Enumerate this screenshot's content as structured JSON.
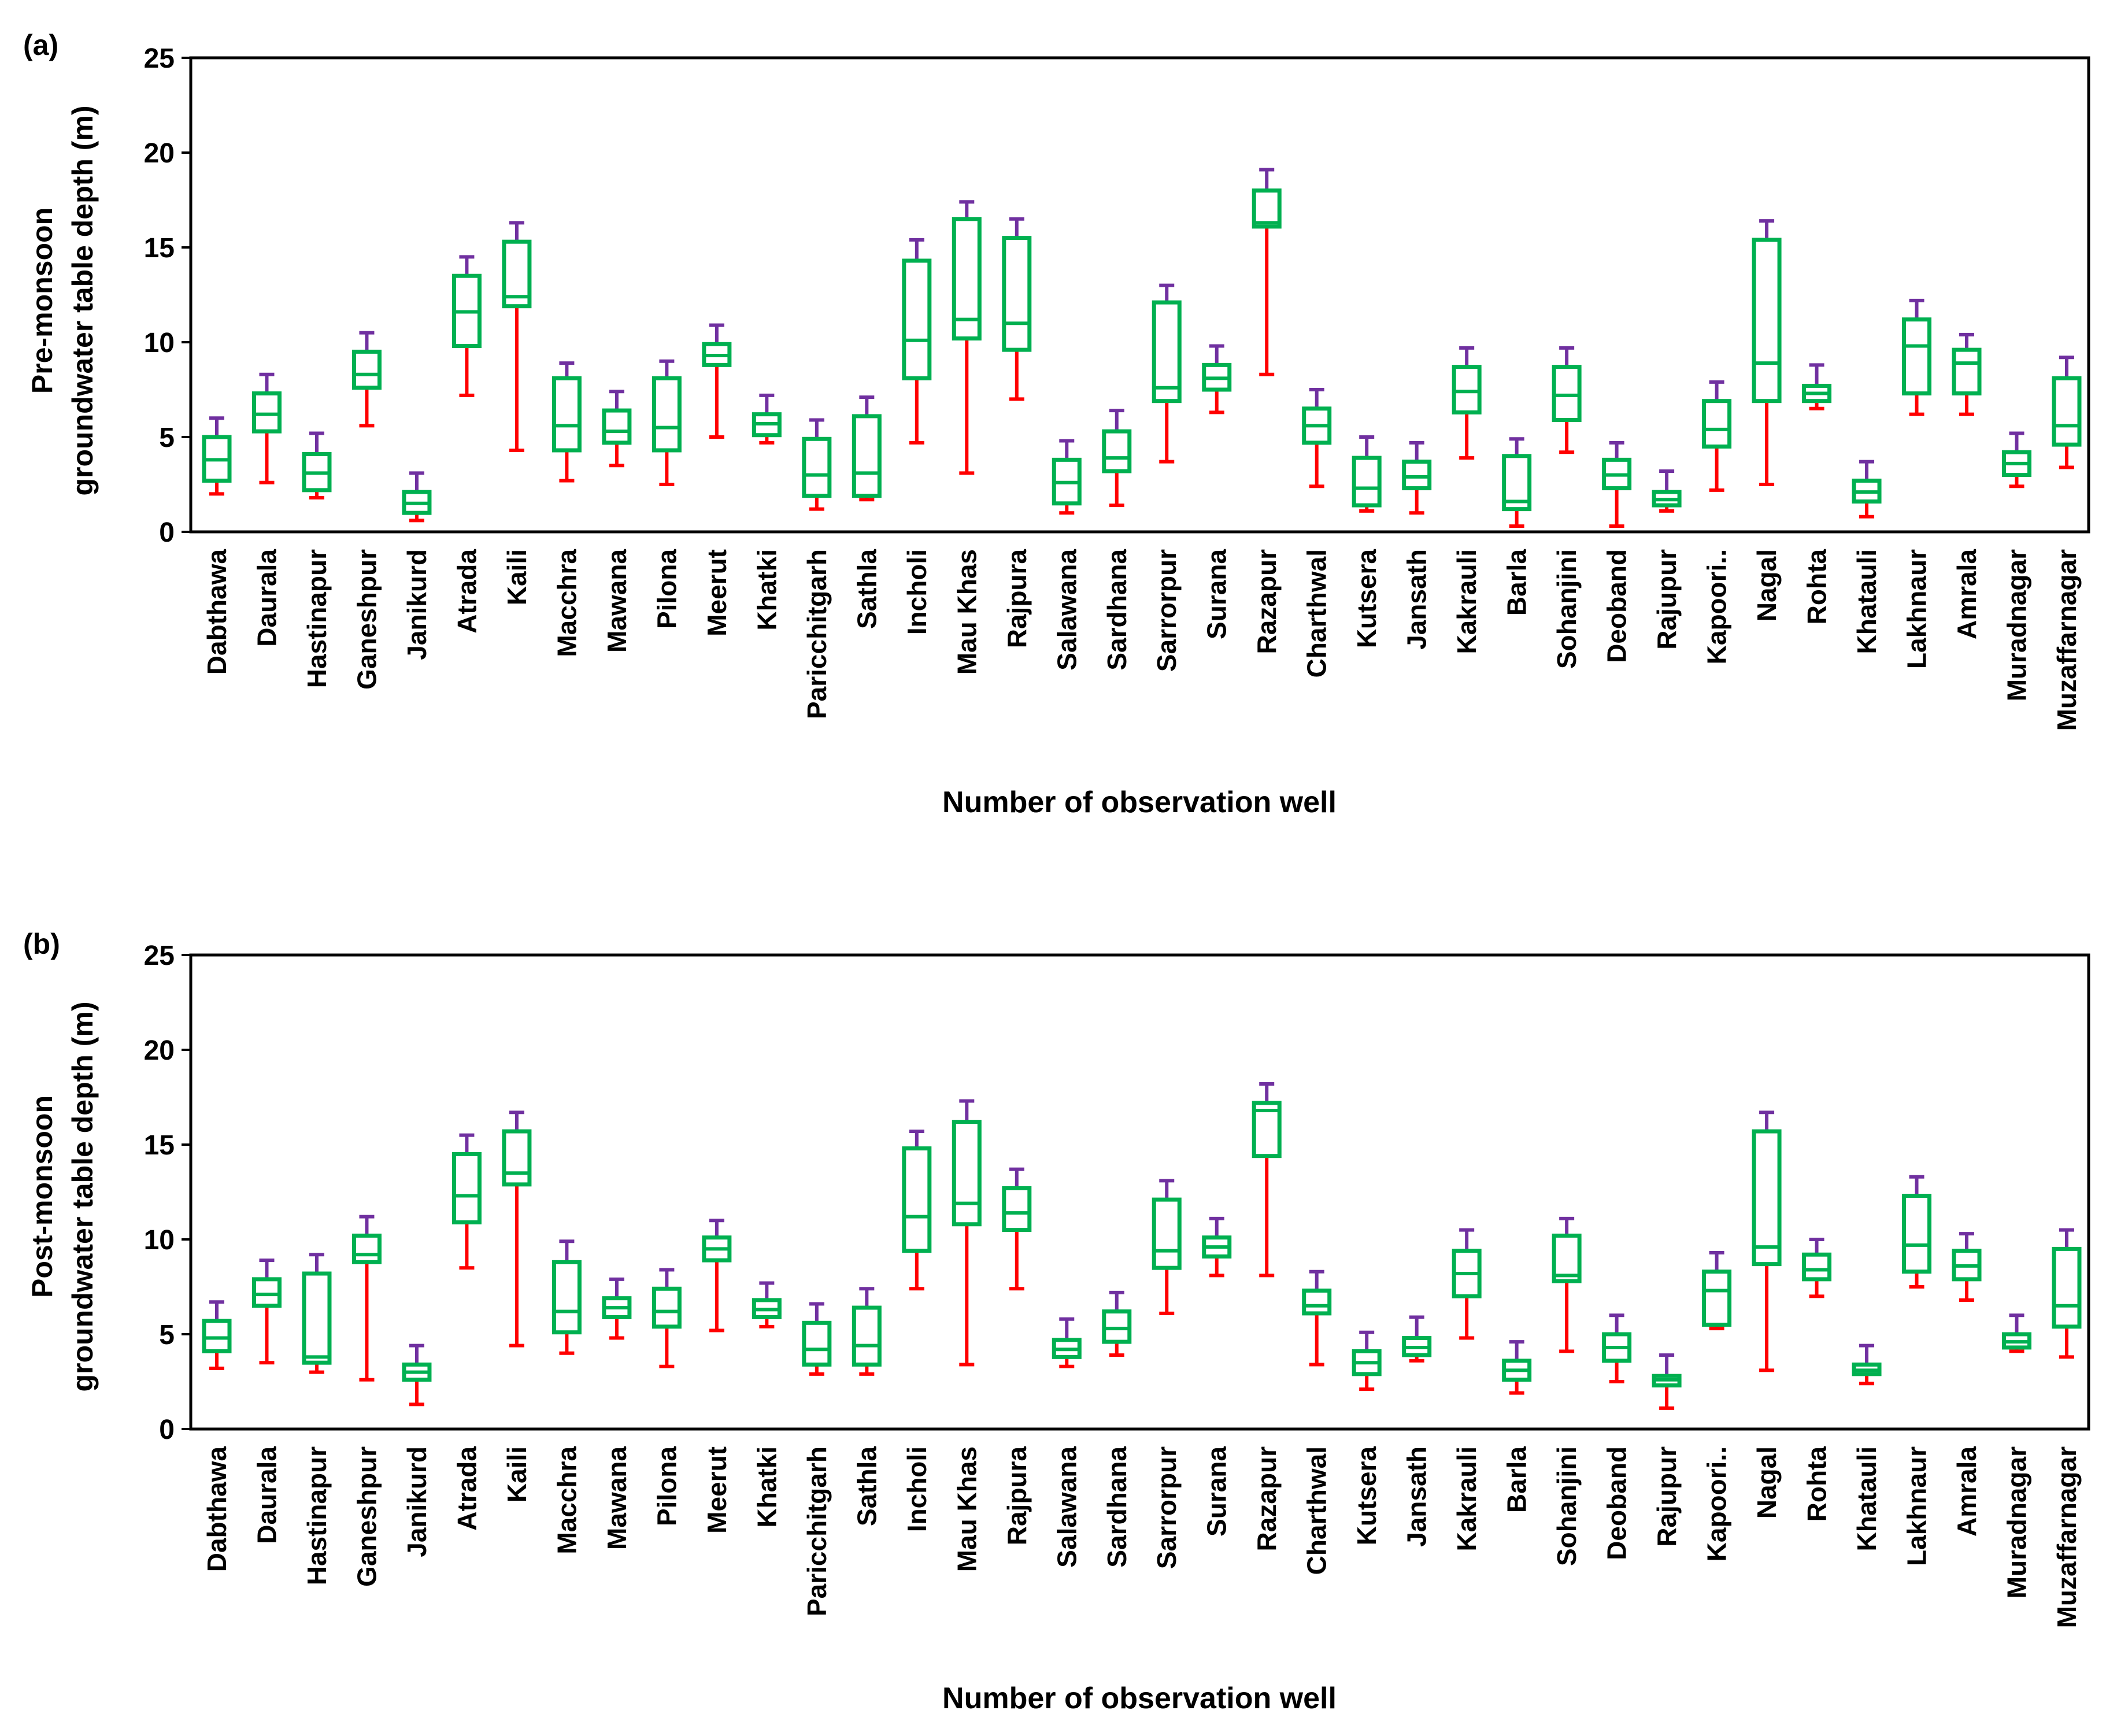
{
  "colors": {
    "box": "#00b050",
    "lower_whisker": "#ff0000",
    "upper_whisker": "#7030a0",
    "axis": "#000000"
  },
  "chart_data": [
    {
      "type": "boxplot",
      "panel_label": "(a)",
      "ylabel_line1": "Pre-monsoon",
      "ylabel_line2": "groundwater table depth (m)",
      "xlabel": "Number of observation well",
      "ylim": [
        0,
        25
      ],
      "yticks": [
        0,
        5,
        10,
        15,
        20,
        25
      ],
      "categories": [
        "Dabthawa",
        "Daurala",
        "Hastinapur",
        "Ganeshpur",
        "Janikurd",
        "Atrada",
        "Kaili",
        "Macchra",
        "Mawana",
        "Pilona",
        "Meerut",
        "Khatki",
        "Paricchitgarh",
        "Sathla",
        "Incholi",
        "Mau Khas",
        "Rajpura",
        "Salawana",
        "Sardhana",
        "Sarrorpur",
        "Surana",
        "Razapur",
        "Charthwal",
        "Kutsera",
        "Jansath",
        "Kakrauli",
        "Barla",
        "Sohanjini",
        "Deoband",
        "Rajupur",
        "Kapoori..",
        "Nagal",
        "Rohta",
        "Khatauli",
        "Lakhnaur",
        "Amrala",
        "Muradnagar",
        "Muzaffarnagar"
      ],
      "min": [
        2.0,
        2.6,
        1.8,
        5.6,
        0.6,
        7.2,
        4.3,
        2.7,
        3.5,
        2.5,
        5.0,
        4.7,
        1.2,
        1.7,
        4.7,
        3.1,
        7.0,
        1.0,
        1.4,
        3.7,
        6.3,
        8.3,
        2.4,
        1.1,
        1.0,
        3.9,
        0.3,
        4.2,
        0.3,
        1.1,
        2.2,
        2.5,
        6.5,
        0.8,
        6.2,
        6.2,
        2.4,
        3.4
      ],
      "q1": [
        2.7,
        5.3,
        2.2,
        7.6,
        1.0,
        9.8,
        11.9,
        4.3,
        4.7,
        4.3,
        8.8,
        5.1,
        1.9,
        1.9,
        8.1,
        10.2,
        9.6,
        1.5,
        3.2,
        6.9,
        7.5,
        16.1,
        4.7,
        1.4,
        2.3,
        6.3,
        1.2,
        5.9,
        2.3,
        1.4,
        4.5,
        6.9,
        6.9,
        1.6,
        7.3,
        7.3,
        3.0,
        4.6
      ],
      "median": [
        3.8,
        6.2,
        3.1,
        8.3,
        1.5,
        11.6,
        12.4,
        5.6,
        5.3,
        5.5,
        9.3,
        5.7,
        3.0,
        3.1,
        10.1,
        11.2,
        11.0,
        2.6,
        3.9,
        7.6,
        8.1,
        16.3,
        5.6,
        2.3,
        2.9,
        7.4,
        1.6,
        7.2,
        3.0,
        1.7,
        5.4,
        8.9,
        7.3,
        2.1,
        9.8,
        8.9,
        3.6,
        5.6
      ],
      "q3": [
        5.0,
        7.3,
        4.1,
        9.5,
        2.1,
        13.5,
        15.3,
        8.1,
        6.4,
        8.1,
        9.9,
        6.2,
        4.9,
        6.1,
        14.3,
        16.5,
        15.5,
        3.8,
        5.3,
        12.1,
        8.8,
        18.0,
        6.5,
        3.9,
        3.7,
        8.7,
        4.0,
        8.7,
        3.8,
        2.1,
        6.9,
        15.4,
        7.7,
        2.7,
        11.2,
        9.6,
        4.2,
        8.1
      ],
      "max": [
        6.0,
        8.3,
        5.2,
        10.5,
        3.1,
        14.5,
        16.3,
        8.9,
        7.4,
        9.0,
        10.9,
        7.2,
        5.9,
        7.1,
        15.4,
        17.4,
        16.5,
        4.8,
        6.4,
        13.0,
        9.8,
        19.1,
        7.5,
        5.0,
        4.7,
        9.7,
        4.9,
        9.7,
        4.7,
        3.2,
        7.9,
        16.4,
        8.8,
        3.7,
        12.2,
        10.4,
        5.2,
        9.2
      ]
    },
    {
      "type": "boxplot",
      "panel_label": "(b)",
      "ylabel_line1": "Post-monsoon",
      "ylabel_line2": "groundwater table depth (m)",
      "xlabel": "Number of observation well",
      "ylim": [
        0,
        25
      ],
      "yticks": [
        0,
        5,
        10,
        15,
        20,
        25
      ],
      "categories": [
        "Dabthawa",
        "Daurala",
        "Hastinapur",
        "Ganeshpur",
        "Janikurd",
        "Atrada",
        "Kaili",
        "Macchra",
        "Mawana",
        "Pilona",
        "Meerut",
        "Khatki",
        "Paricchitgarh",
        "Sathla",
        "Incholi",
        "Mau Khas",
        "Rajpura",
        "Salawana",
        "Sardhana",
        "Sarrorpur",
        "Surana",
        "Razapur",
        "Charthwal",
        "Kutsera",
        "Jansath",
        "Kakrauli",
        "Barla",
        "Sohanjini",
        "Deoband",
        "Rajupur",
        "Kapoori..",
        "Nagal",
        "Rohta",
        "Khatauli",
        "Lakhnaur",
        "Amrala",
        "Muradnagar",
        "Muzaffarnagar"
      ],
      "min": [
        3.2,
        3.5,
        3.0,
        2.6,
        1.3,
        8.5,
        4.4,
        4.0,
        4.8,
        3.3,
        5.2,
        5.4,
        2.9,
        2.9,
        7.4,
        3.4,
        7.4,
        3.3,
        3.9,
        6.1,
        8.1,
        8.1,
        3.4,
        2.1,
        3.6,
        4.8,
        1.9,
        4.1,
        2.5,
        1.1,
        5.3,
        3.1,
        7.0,
        2.4,
        7.5,
        6.8,
        4.1,
        3.8
      ],
      "q1": [
        4.1,
        6.5,
        3.5,
        8.8,
        2.6,
        10.9,
        12.9,
        5.1,
        5.9,
        5.4,
        8.9,
        5.9,
        3.4,
        3.4,
        9.4,
        10.8,
        10.5,
        3.8,
        4.6,
        8.5,
        9.1,
        14.4,
        6.1,
        2.9,
        3.9,
        7.0,
        2.6,
        7.8,
        3.6,
        2.3,
        5.5,
        8.7,
        7.9,
        2.9,
        8.3,
        7.9,
        4.3,
        5.4
      ],
      "median": [
        4.8,
        7.1,
        3.8,
        9.2,
        3.0,
        12.3,
        13.5,
        6.2,
        6.4,
        6.2,
        9.5,
        6.3,
        4.2,
        4.4,
        11.2,
        11.9,
        11.4,
        4.2,
        5.3,
        9.4,
        9.6,
        16.8,
        6.5,
        3.5,
        4.3,
        8.2,
        3.1,
        8.1,
        4.3,
        2.6,
        7.3,
        9.6,
        8.4,
        3.1,
        9.7,
        8.6,
        4.6,
        6.5
      ],
      "q3": [
        5.7,
        7.9,
        8.2,
        10.2,
        3.4,
        14.5,
        15.7,
        8.8,
        6.9,
        7.4,
        10.1,
        6.8,
        5.6,
        6.4,
        14.8,
        16.2,
        12.7,
        4.7,
        6.2,
        12.1,
        10.1,
        17.2,
        7.3,
        4.1,
        4.8,
        9.4,
        3.6,
        10.2,
        5.0,
        2.8,
        8.3,
        15.7,
        9.2,
        3.4,
        12.3,
        9.4,
        5.0,
        9.5
      ],
      "max": [
        6.7,
        8.9,
        9.2,
        11.2,
        4.4,
        15.5,
        16.7,
        9.9,
        7.9,
        8.4,
        11.0,
        7.7,
        6.6,
        7.4,
        15.7,
        17.3,
        13.7,
        5.8,
        7.2,
        13.1,
        11.1,
        18.2,
        8.3,
        5.1,
        5.9,
        10.5,
        4.6,
        11.1,
        6.0,
        3.9,
        9.3,
        16.7,
        10.0,
        4.4,
        13.3,
        10.3,
        6.0,
        10.5
      ]
    }
  ]
}
